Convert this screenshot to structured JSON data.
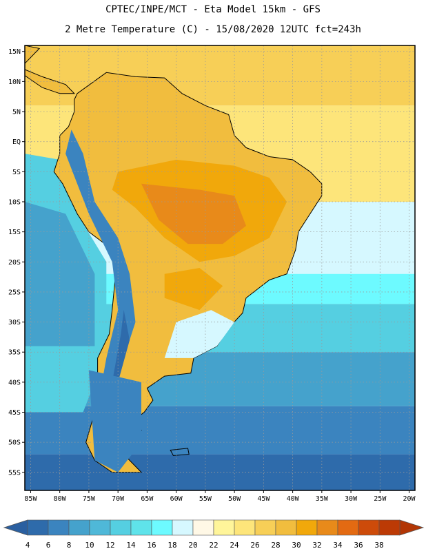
{
  "title_line1": "CPTEC/INPE/MCT -  Eta Model 15km - GFS",
  "title_line2": "2 Metre Temperature (C) - 15/08/2020 12UTC fct=243h",
  "map": {
    "lon_range": [
      -86,
      -19
    ],
    "lat_range": [
      -58,
      16
    ],
    "lon_ticks": [
      {
        "value": -85,
        "label": "85W"
      },
      {
        "value": -80,
        "label": "80W"
      },
      {
        "value": -75,
        "label": "75W"
      },
      {
        "value": -70,
        "label": "70W"
      },
      {
        "value": -65,
        "label": "65W"
      },
      {
        "value": -60,
        "label": "60W"
      },
      {
        "value": -55,
        "label": "55W"
      },
      {
        "value": -50,
        "label": "50W"
      },
      {
        "value": -45,
        "label": "45W"
      },
      {
        "value": -40,
        "label": "40W"
      },
      {
        "value": -35,
        "label": "35W"
      },
      {
        "value": -30,
        "label": "30W"
      },
      {
        "value": -25,
        "label": "25W"
      },
      {
        "value": -20,
        "label": "20W"
      }
    ],
    "lat_ticks": [
      {
        "value": 15,
        "label": "15N"
      },
      {
        "value": 10,
        "label": "10N"
      },
      {
        "value": 5,
        "label": "5N"
      },
      {
        "value": 0,
        "label": "EQ"
      },
      {
        "value": -5,
        "label": "5S"
      },
      {
        "value": -10,
        "label": "10S"
      },
      {
        "value": -15,
        "label": "15S"
      },
      {
        "value": -20,
        "label": "20S"
      },
      {
        "value": -25,
        "label": "25S"
      },
      {
        "value": -30,
        "label": "30S"
      },
      {
        "value": -35,
        "label": "35S"
      },
      {
        "value": -40,
        "label": "40S"
      },
      {
        "value": -45,
        "label": "45S"
      },
      {
        "value": -50,
        "label": "50S"
      },
      {
        "value": -55,
        "label": "55S"
      }
    ],
    "gridlines": true
  },
  "colorbar": {
    "labels": [
      "4",
      "6",
      "8",
      "10",
      "12",
      "14",
      "16",
      "18",
      "20",
      "22",
      "24",
      "26",
      "28",
      "30",
      "32",
      "34",
      "36",
      "38"
    ],
    "colors": [
      "#2e6bab",
      "#3b84bf",
      "#45a2cc",
      "#4fb8d8",
      "#55cfe1",
      "#5fe3ea",
      "#6dfaff",
      "#d6f8ff",
      "#fff8e6",
      "#fff59a",
      "#fde57a",
      "#f7cf57",
      "#f1bd3e",
      "#f1a80b",
      "#e88a1a",
      "#e36a12",
      "#cd4b0a",
      "#bc3a05"
    ],
    "under_color": "#2a5fa0",
    "over_color": "#b23605"
  },
  "field_colors": {
    "ocean_south_deep": "#2e6bab",
    "ocean_south": "#3b84bf",
    "ocean_mid": "#45a2cc",
    "ocean_light": "#55cfe1",
    "ocean_pale": "#6dfaff",
    "ocean_cool": "#d6f8ff",
    "ocean_tropic": "#fde57a",
    "ocean_north": "#f7cf57",
    "land_hot": "#e88a1a",
    "land_warm": "#f1a80b",
    "land_mild": "#f1bd3e",
    "land_cool": "#d6f8ff",
    "andes_cold": "#3b84bf",
    "andes_colder": "#2e6bab"
  }
}
